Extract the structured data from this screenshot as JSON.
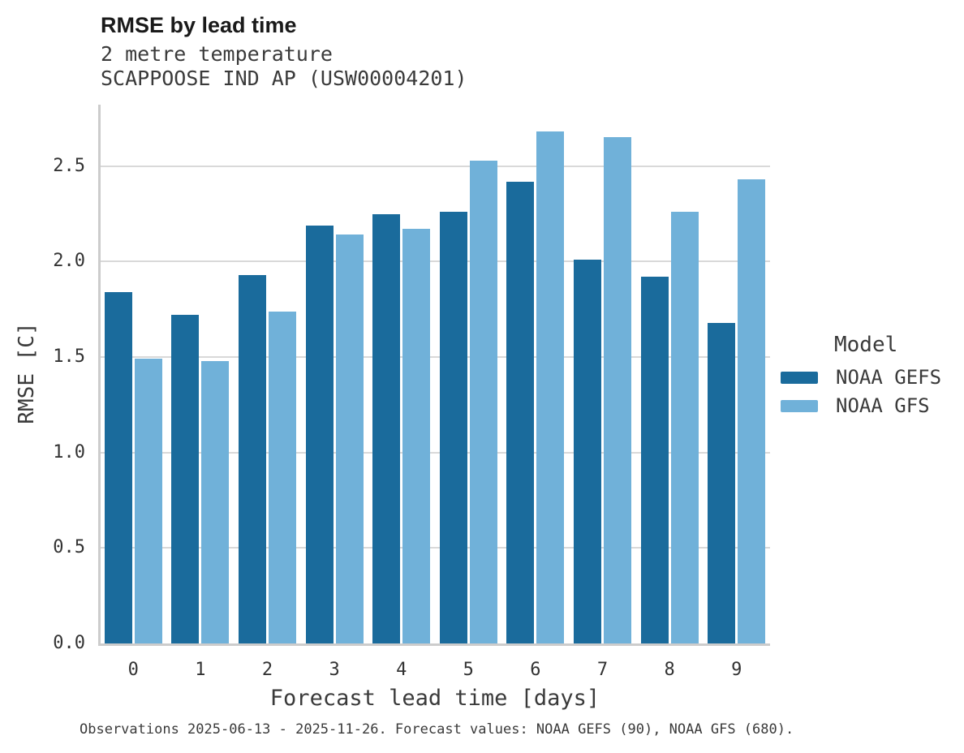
{
  "header": {
    "title": "RMSE by lead time",
    "subtitle_line1": "2 metre temperature",
    "subtitle_line2": "SCAPPOOSE IND AP (USW00004201)"
  },
  "chart_data": {
    "type": "bar",
    "title": "RMSE by lead time",
    "subtitle": [
      "2 metre temperature",
      "SCAPPOOSE IND AP (USW00004201)"
    ],
    "categories": [
      "0",
      "1",
      "2",
      "3",
      "4",
      "5",
      "6",
      "7",
      "8",
      "9"
    ],
    "series": [
      {
        "name": "NOAA GEFS",
        "color": "#1a6b9c",
        "values": [
          1.84,
          1.72,
          1.93,
          2.19,
          2.25,
          2.26,
          2.42,
          2.01,
          1.92,
          1.68
        ]
      },
      {
        "name": "NOAA GFS",
        "color": "#70b1d9",
        "values": [
          1.49,
          1.48,
          1.74,
          2.14,
          2.17,
          2.53,
          2.68,
          2.65,
          2.26,
          2.43
        ]
      }
    ],
    "xlabel": "Forecast lead time [days]",
    "ylabel": "RMSE [C]",
    "ylim": [
      0,
      2.82
    ],
    "yticks": [
      0.0,
      0.5,
      1.0,
      1.5,
      2.0,
      2.5
    ],
    "grid": "horizontal",
    "legend_position": "right"
  },
  "legend": {
    "title": "Model",
    "items": [
      {
        "label": "NOAA GEFS",
        "color": "#1a6b9c"
      },
      {
        "label": "NOAA GFS",
        "color": "#70b1d9"
      }
    ]
  },
  "footer": {
    "note": "Observations 2025-06-13 - 2025-11-26. Forecast values: NOAA GEFS (90), NOAA GFS (680)."
  },
  "colors": {
    "gridline": "#d9d9d9",
    "spine": "#cccccc",
    "background": "#ffffff",
    "gefs_bar": "#1a6b9c",
    "gfs_bar": "#70b1d9"
  }
}
